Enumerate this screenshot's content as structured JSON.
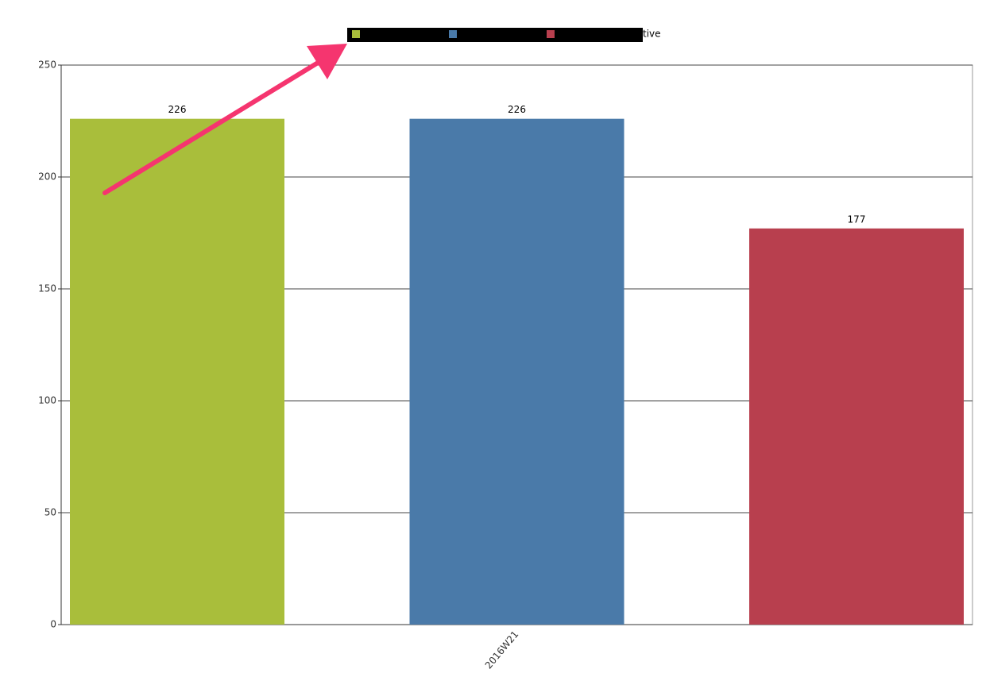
{
  "chart_data": {
    "type": "bar",
    "categories": [
      "2016W21"
    ],
    "series": [
      {
        "color": "#a9be3b",
        "values": [
          226
        ]
      },
      {
        "color": "#4a7aa9",
        "values": [
          226
        ]
      },
      {
        "name": "tive",
        "color": "#b83f4e",
        "values": [
          177
        ]
      }
    ],
    "ylim": [
      0,
      250
    ],
    "yticks": [
      0,
      50,
      100,
      150,
      200,
      250
    ],
    "grid": true
  }
}
